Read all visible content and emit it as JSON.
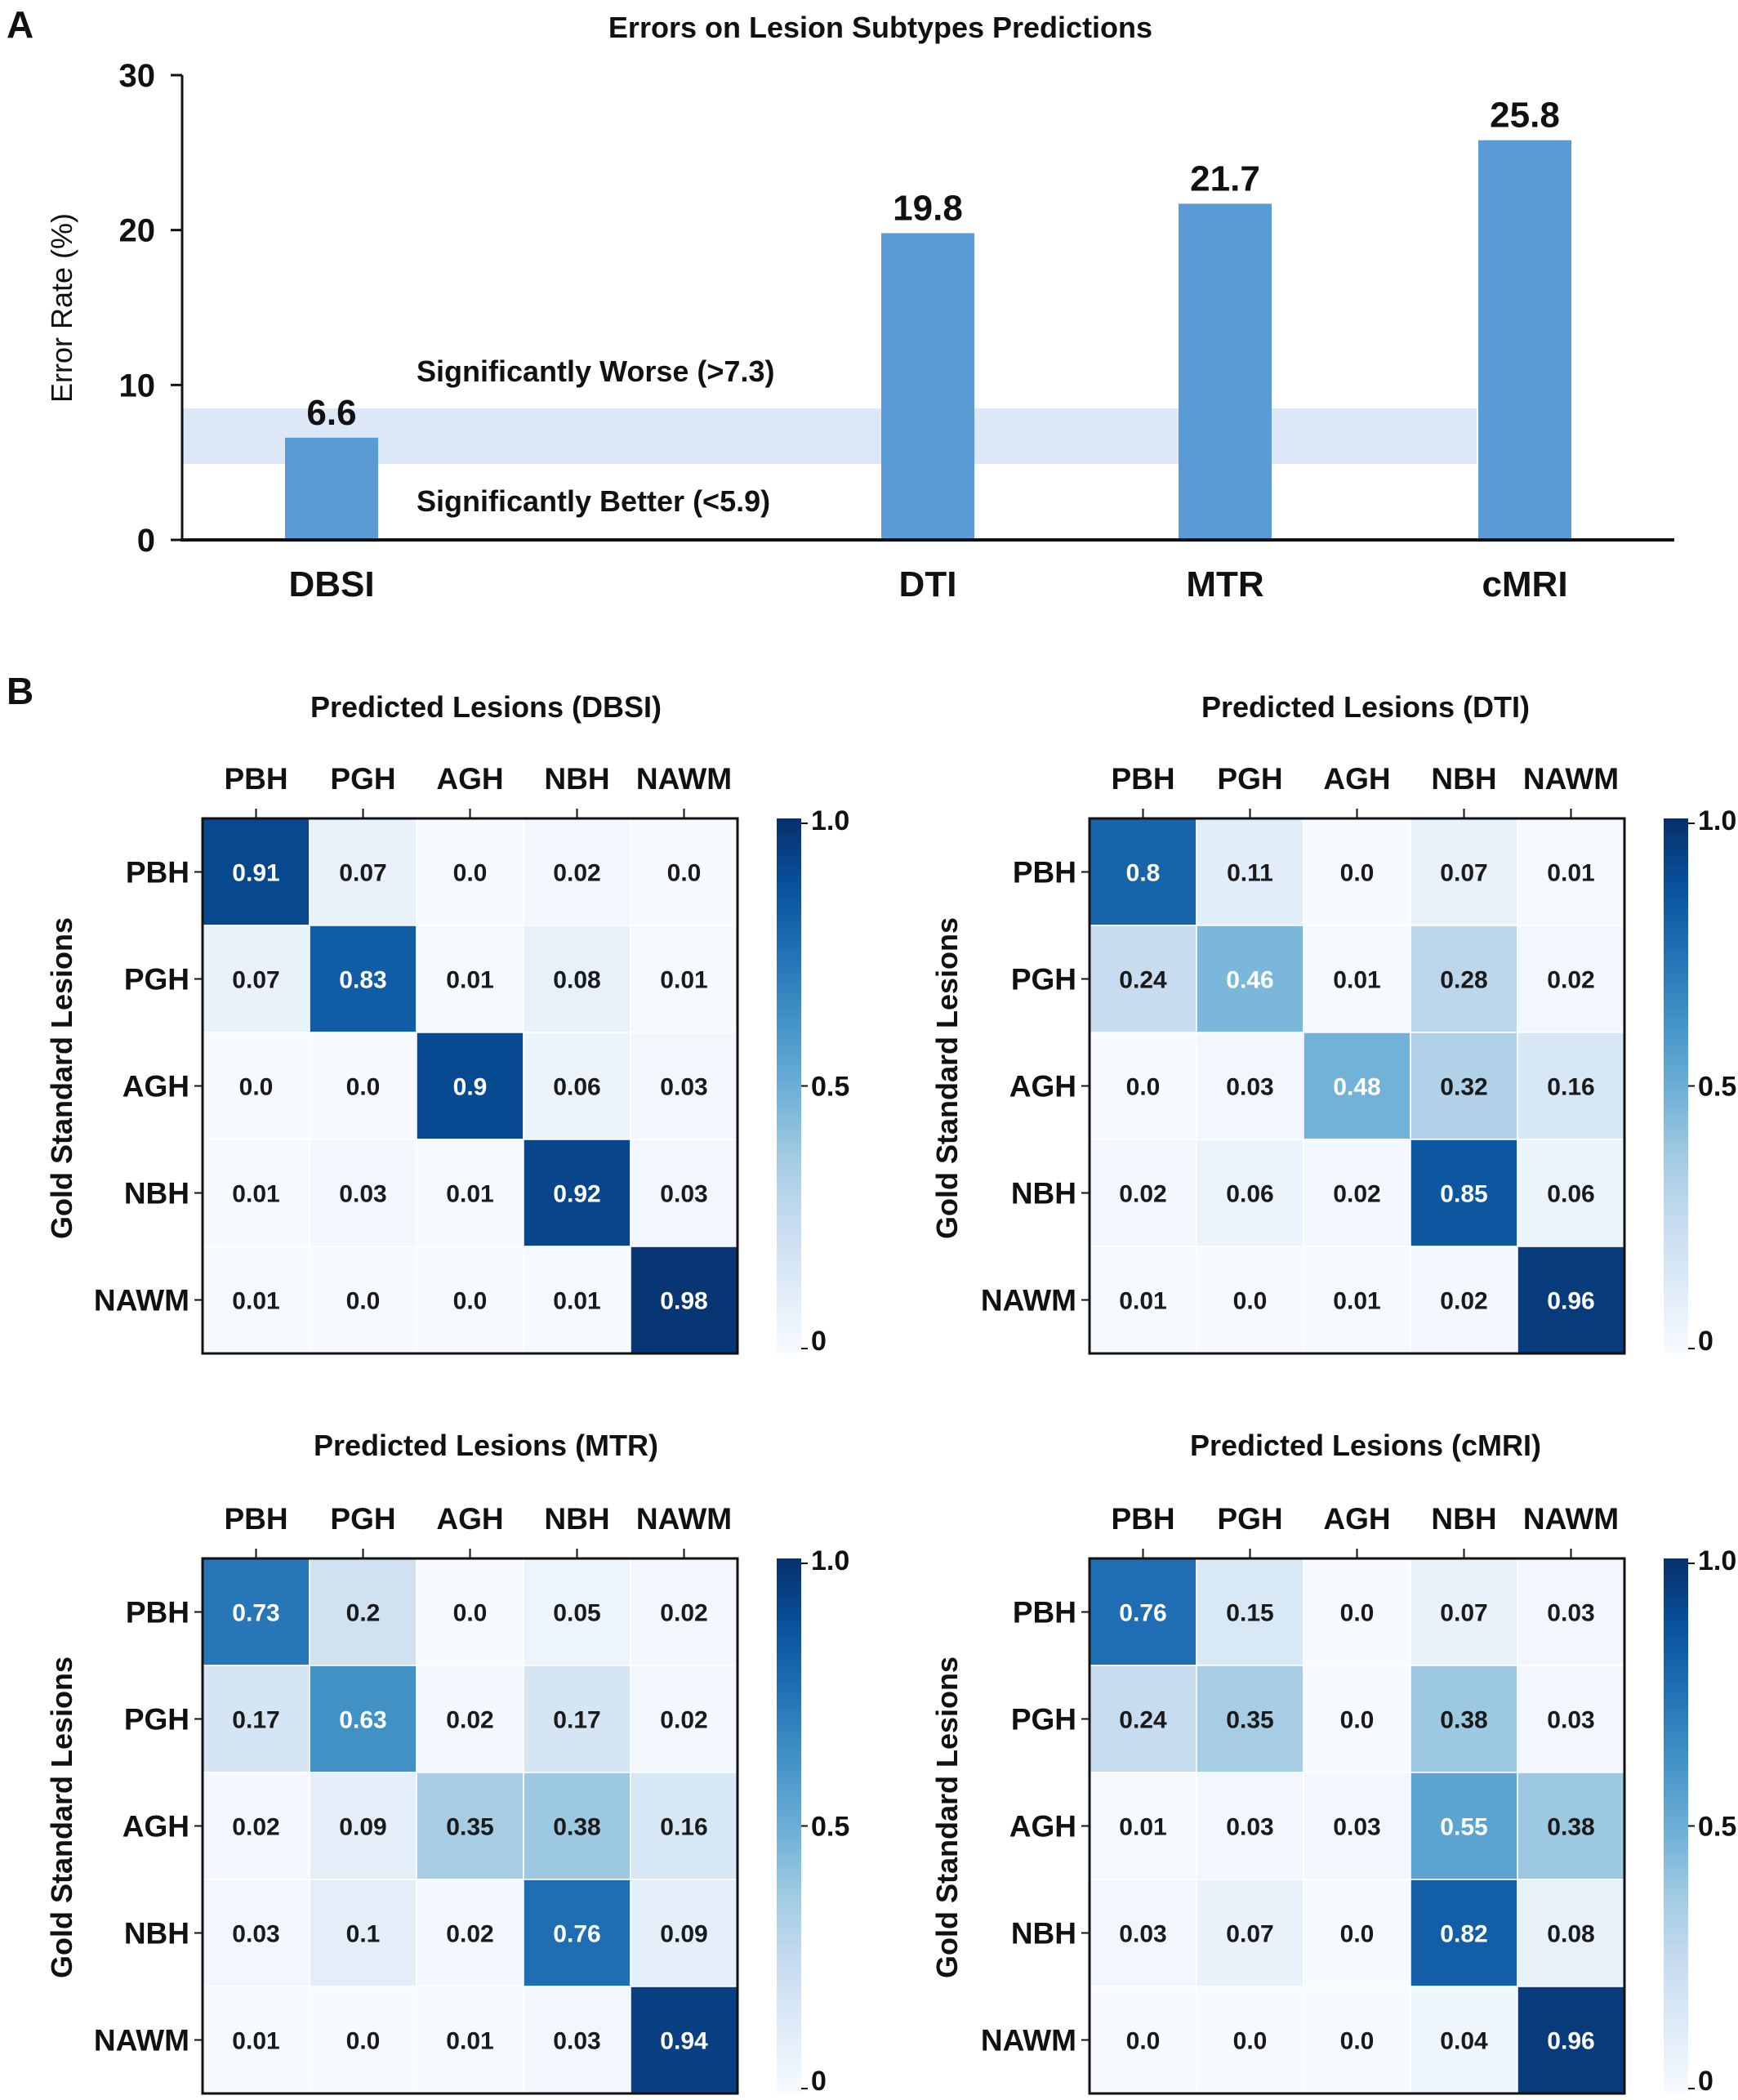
{
  "panel_a_letter": "A",
  "panel_b_letter": "B",
  "chart_data": [
    {
      "type": "bar",
      "title": "Errors on Lesion  Subtypes  Predictions",
      "categories": [
        "DBSI",
        "DTI",
        "MTR",
        "cMRI"
      ],
      "values": [
        6.6,
        19.8,
        21.7,
        25.8
      ],
      "value_labels": [
        "6.6",
        "19.8",
        "21.7",
        "25.8"
      ],
      "xlabel": "",
      "ylabel": "Error Rate (%)",
      "ylim": [
        0,
        30
      ],
      "yticks": [
        "0",
        "10",
        "20",
        "30"
      ],
      "band": {
        "low": 4.9,
        "high": 8.5,
        "color": "#dce8f5"
      },
      "band_labels": {
        "upper": "Significantly  Worse  (>7.3)",
        "lower": "Significantly  Better  (<5.9)"
      },
      "bar_color": "#5b9bd5",
      "grid": false
    },
    {
      "type": "heatmap",
      "title": "Predicted  Lesions  (DBSI)",
      "ylabel": "Gold Standard  Lesions",
      "columns": [
        "PBH",
        "PGH",
        "AGH",
        "NBH",
        "NAWM"
      ],
      "rows": [
        "PBH",
        "PGH",
        "AGH",
        "NBH",
        "NAWM"
      ],
      "cells": [
        [
          "0.91",
          "0.07",
          "0.0",
          "0.02",
          "0.0"
        ],
        [
          "0.07",
          "0.83",
          "0.01",
          "0.08",
          "0.01"
        ],
        [
          "0.0",
          "0.0",
          "0.9",
          "0.06",
          "0.03"
        ],
        [
          "0.01",
          "0.03",
          "0.01",
          "0.92",
          "0.03"
        ],
        [
          "0.01",
          "0.0",
          "0.0",
          "0.01",
          "0.98"
        ]
      ],
      "colorbar_ticks": [
        "1.0",
        "0.5",
        "0"
      ],
      "colormap": "Blues"
    },
    {
      "type": "heatmap",
      "title": "Predicted  Lesions  (DTI)",
      "ylabel": "Gold Standard  Lesions",
      "columns": [
        "PBH",
        "PGH",
        "AGH",
        "NBH",
        "NAWM"
      ],
      "rows": [
        "PBH",
        "PGH",
        "AGH",
        "NBH",
        "NAWM"
      ],
      "cells": [
        [
          "0.8",
          "0.11",
          "0.0",
          "0.07",
          "0.01"
        ],
        [
          "0.24",
          "0.46",
          "0.01",
          "0.28",
          "0.02"
        ],
        [
          "0.0",
          "0.03",
          "0.48",
          "0.32",
          "0.16"
        ],
        [
          "0.02",
          "0.06",
          "0.02",
          "0.85",
          "0.06"
        ],
        [
          "0.01",
          "0.0",
          "0.01",
          "0.02",
          "0.96"
        ]
      ],
      "colorbar_ticks": [
        "1.0",
        "0.5",
        "0"
      ],
      "colormap": "Blues"
    },
    {
      "type": "heatmap",
      "title": "Predicted  Lesions  (MTR)",
      "ylabel": "Gold Standard  Lesions",
      "columns": [
        "PBH",
        "PGH",
        "AGH",
        "NBH",
        "NAWM"
      ],
      "rows": [
        "PBH",
        "PGH",
        "AGH",
        "NBH",
        "NAWM"
      ],
      "cells": [
        [
          "0.73",
          "0.2",
          "0.0",
          "0.05",
          "0.02"
        ],
        [
          "0.17",
          "0.63",
          "0.02",
          "0.17",
          "0.02"
        ],
        [
          "0.02",
          "0.09",
          "0.35",
          "0.38",
          "0.16"
        ],
        [
          "0.03",
          "0.1",
          "0.02",
          "0.76",
          "0.09"
        ],
        [
          "0.01",
          "0.0",
          "0.01",
          "0.03",
          "0.94"
        ]
      ],
      "colorbar_ticks": [
        "1.0",
        "0.5",
        "0"
      ],
      "colormap": "Blues"
    },
    {
      "type": "heatmap",
      "title": "Predicted  Lesions  (cMRI)",
      "ylabel": "Gold Standard  Lesions",
      "columns": [
        "PBH",
        "PGH",
        "AGH",
        "NBH",
        "NAWM"
      ],
      "rows": [
        "PBH",
        "PGH",
        "AGH",
        "NBH",
        "NAWM"
      ],
      "cells": [
        [
          "0.76",
          "0.15",
          "0.0",
          "0.07",
          "0.03"
        ],
        [
          "0.24",
          "0.35",
          "0.0",
          "0.38",
          "0.03"
        ],
        [
          "0.01",
          "0.03",
          "0.03",
          "0.55",
          "0.38"
        ],
        [
          "0.03",
          "0.07",
          "0.0",
          "0.82",
          "0.08"
        ],
        [
          "0.0",
          "0.0",
          "0.0",
          "0.04",
          "0.96"
        ]
      ],
      "colorbar_ticks": [
        "1.0",
        "0.5",
        "0"
      ],
      "colormap": "Blues"
    }
  ]
}
